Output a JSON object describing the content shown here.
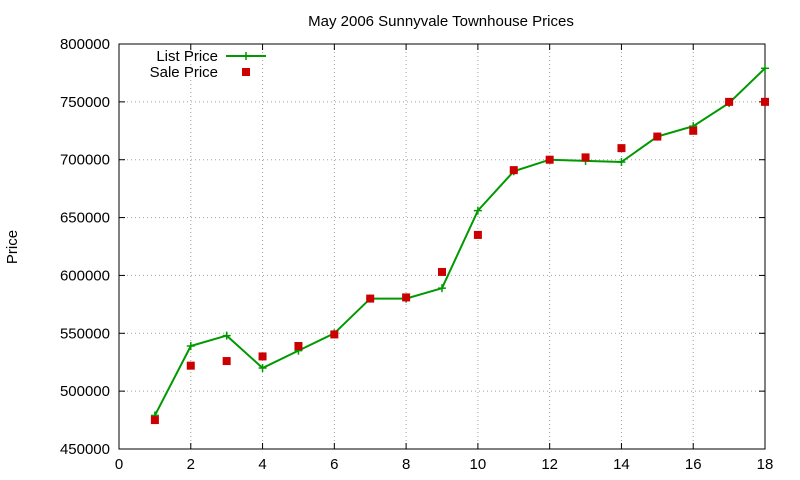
{
  "chart_data": {
    "type": "line",
    "title": "May 2006 Sunnyvale Townhouse Prices",
    "xlabel": "",
    "ylabel": "Price",
    "xlim": [
      0,
      18
    ],
    "ylim": [
      450000,
      800000
    ],
    "x_ticks": [
      "0",
      "2",
      "4",
      "6",
      "8",
      "10",
      "12",
      "14",
      "16",
      "18"
    ],
    "y_ticks": [
      "450000",
      "500000",
      "550000",
      "600000",
      "650000",
      "700000",
      "750000",
      "800000"
    ],
    "grid": true,
    "legend_position": "top-left",
    "series": [
      {
        "name": "List Price",
        "style": "line-plus",
        "color": "#009900",
        "x": [
          1,
          2,
          3,
          4,
          5,
          6,
          7,
          8,
          9,
          10,
          11,
          12,
          13,
          14,
          15,
          16,
          17,
          18
        ],
        "y": [
          479000,
          539000,
          548000,
          520000,
          535000,
          550000,
          580000,
          580000,
          589000,
          656000,
          690000,
          700000,
          699000,
          698000,
          720000,
          729000,
          749000,
          779000
        ]
      },
      {
        "name": "Sale Price",
        "style": "square",
        "color": "#cc0000",
        "x": [
          1,
          2,
          3,
          4,
          5,
          6,
          7,
          8,
          9,
          10,
          11,
          12,
          13,
          14,
          15,
          16,
          17,
          18
        ],
        "y": [
          475000,
          522000,
          526000,
          530000,
          539000,
          549000,
          580000,
          581000,
          603000,
          635000,
          691000,
          700000,
          702000,
          710000,
          720000,
          725000,
          750000,
          750000
        ]
      }
    ]
  }
}
